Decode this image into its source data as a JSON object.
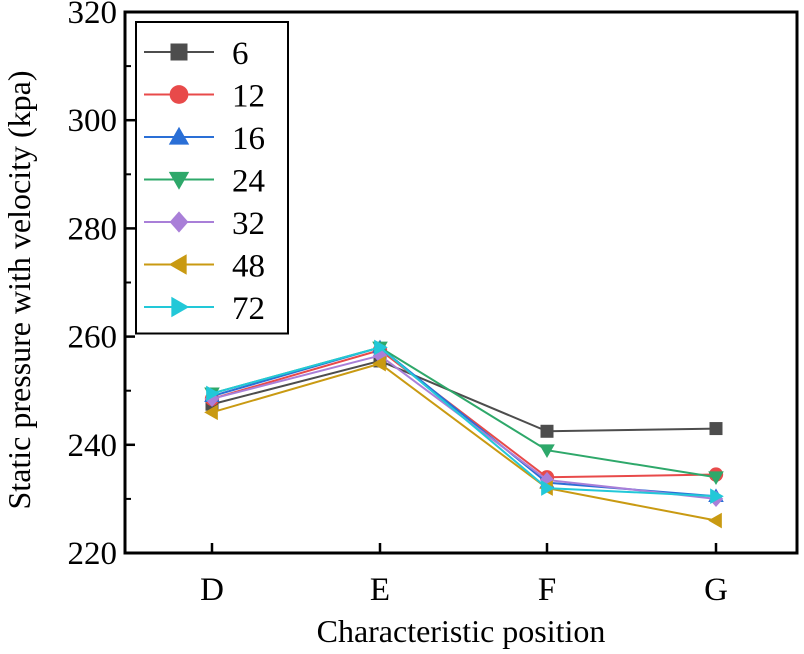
{
  "chart_data": {
    "type": "line",
    "title": "",
    "xlabel": "Characteristic position",
    "ylabel": "Static pressure with velocity (kpa)",
    "categories": [
      "D",
      "E",
      "F",
      "G"
    ],
    "ylim": [
      220,
      320
    ],
    "yticks": [
      220,
      240,
      260,
      280,
      300,
      320
    ],
    "grid": false,
    "legend_position": "top-left",
    "series": [
      {
        "name": "6",
        "color": "#4d4d4d",
        "marker": "square",
        "values": [
          247.5,
          255.5,
          242.5,
          243.0
        ]
      },
      {
        "name": "12",
        "color": "#e84a4a",
        "marker": "circle",
        "values": [
          248.5,
          257.5,
          234.0,
          234.5
        ]
      },
      {
        "name": "16",
        "color": "#2a6fd6",
        "marker": "triangle-up",
        "values": [
          249.0,
          258.0,
          233.0,
          230.5
        ]
      },
      {
        "name": "24",
        "color": "#2ea86a",
        "marker": "triangle-down",
        "values": [
          249.5,
          258.0,
          239.0,
          234.0
        ]
      },
      {
        "name": "32",
        "color": "#a97fd8",
        "marker": "diamond",
        "values": [
          248.5,
          256.5,
          233.5,
          230.0
        ]
      },
      {
        "name": "48",
        "color": "#c99a12",
        "marker": "triangle-left",
        "values": [
          246.0,
          255.0,
          232.0,
          226.0
        ]
      },
      {
        "name": "72",
        "color": "#22c8d8",
        "marker": "triangle-right",
        "values": [
          249.5,
          258.0,
          232.0,
          230.5
        ]
      }
    ]
  }
}
